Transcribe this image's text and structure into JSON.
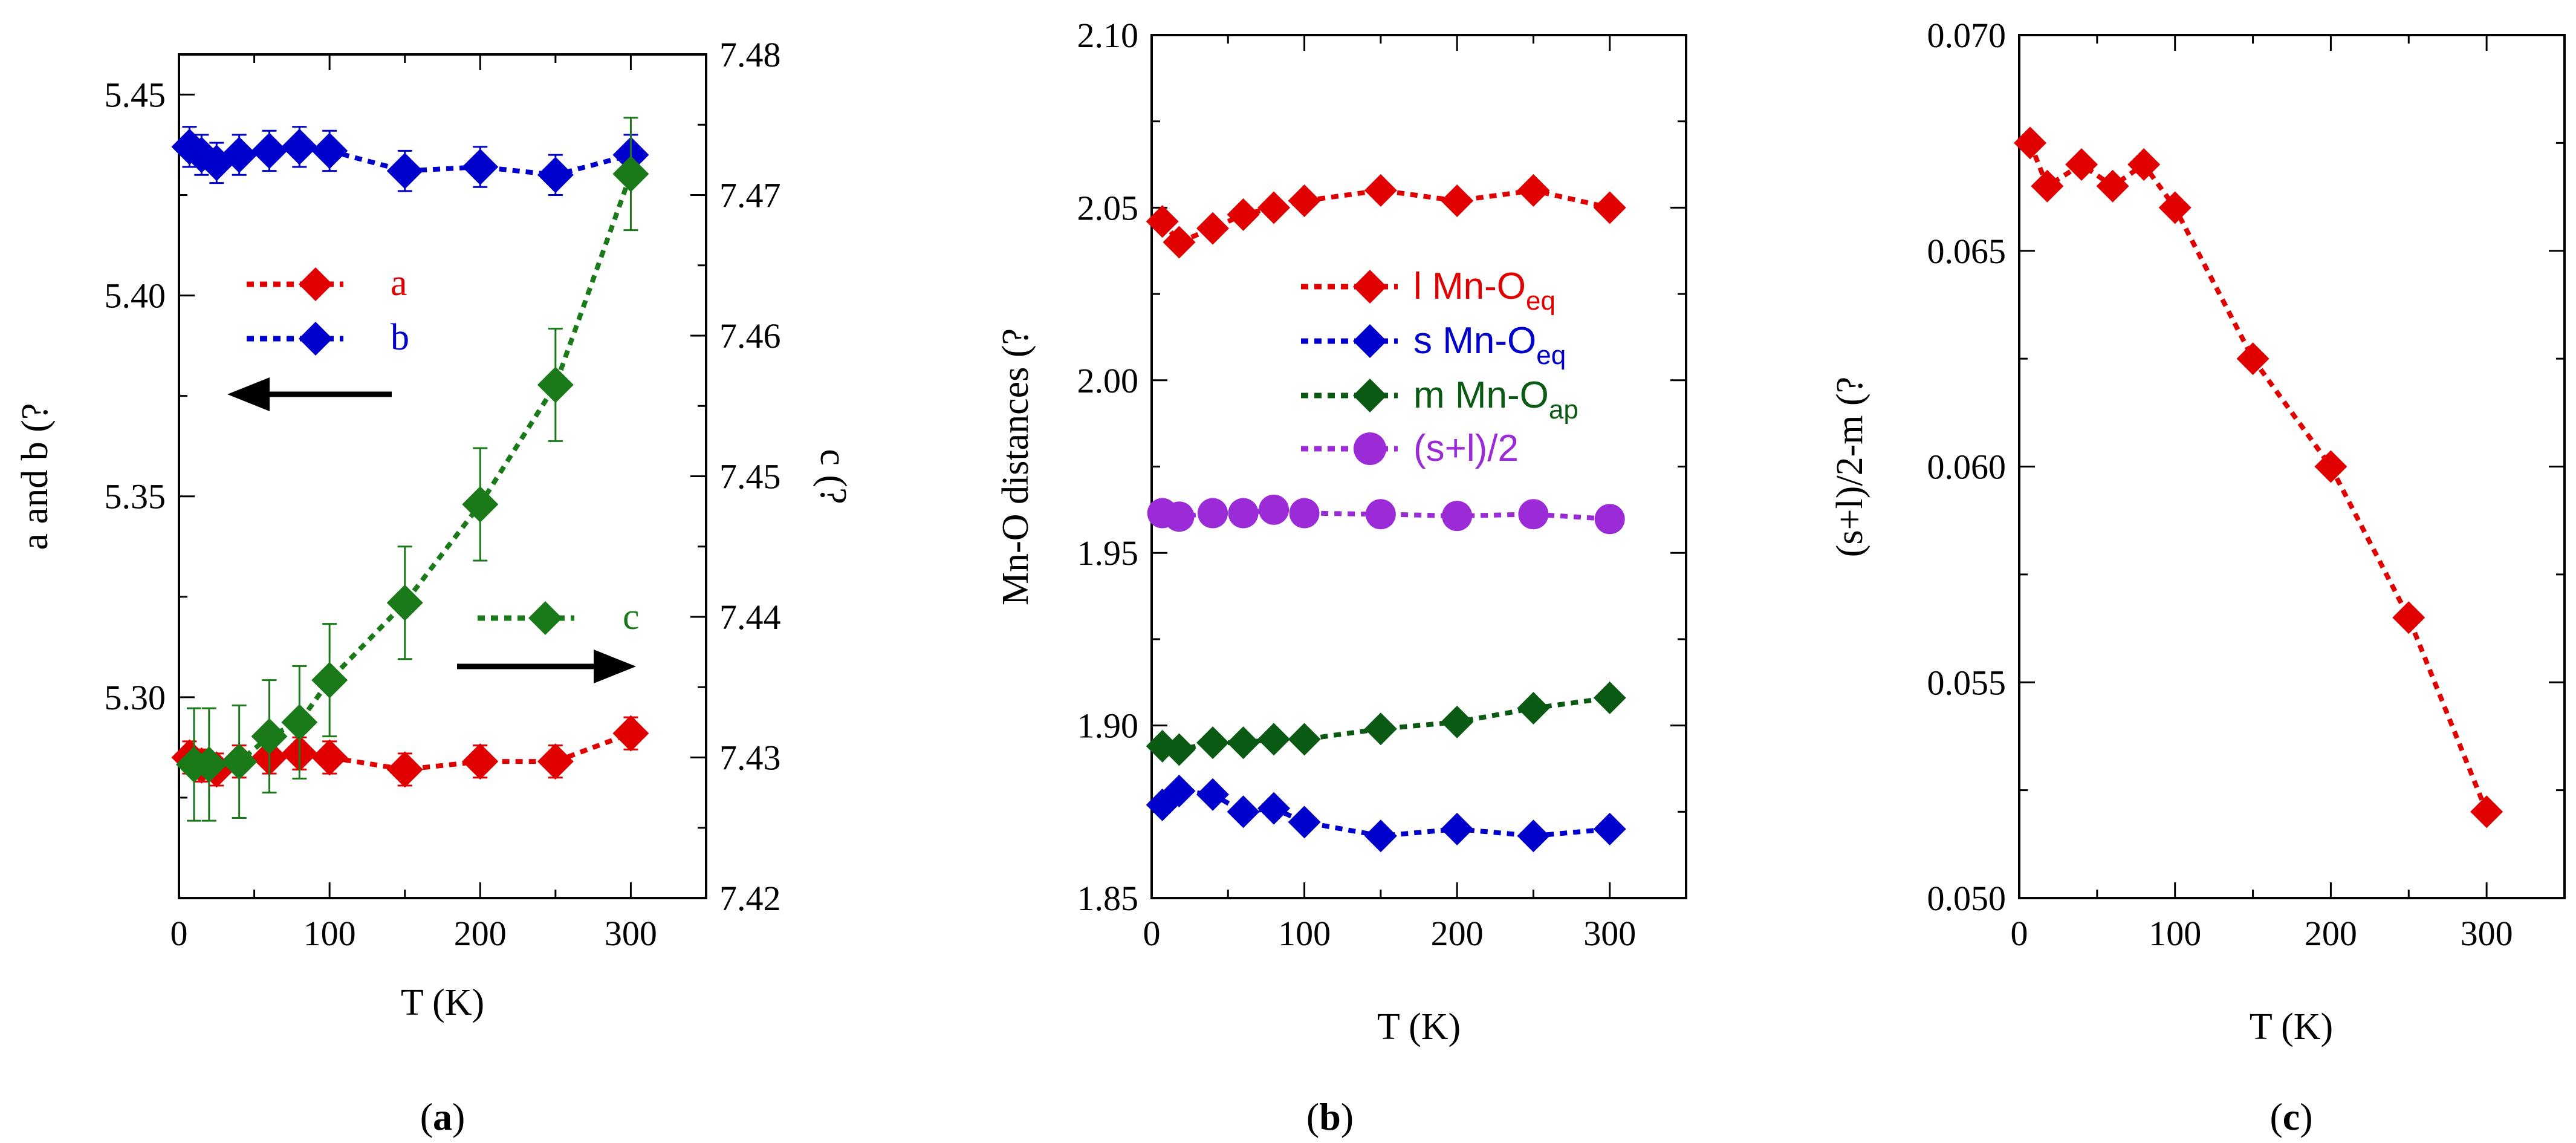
{
  "colors": {
    "red": "#e00000",
    "blue": "#0000cc",
    "green": "#1a7a1a",
    "darkgreen": "#0a5a14",
    "purple": "#9a2bd6",
    "black": "#000000"
  },
  "chart_data": [
    {
      "id": "a",
      "type": "scatter",
      "panel_label_prefix": "(",
      "panel_label": "a",
      "panel_label_suffix": ")",
      "xlabel": "T (K)",
      "ylabel": "a and b (?",
      "y2label": "c (?",
      "xlim": [
        0,
        350
      ],
      "ylim": [
        5.25,
        5.46
      ],
      "y2lim": [
        7.42,
        7.48
      ],
      "xticks": [
        "0",
        "100",
        "200",
        "300"
      ],
      "yticks": [
        "5.30",
        "5.35",
        "5.40",
        "5.45"
      ],
      "y2ticks": [
        "7.42",
        "7.43",
        "7.44",
        "7.45",
        "7.46",
        "7.47",
        "7.48"
      ],
      "grid": false,
      "series": [
        {
          "name": "a",
          "axis": "left",
          "color": "red",
          "marker": "diamond",
          "line": "dotted",
          "x": [
            7,
            15,
            25,
            40,
            60,
            80,
            100,
            150,
            200,
            250,
            300
          ],
          "y": [
            5.285,
            5.283,
            5.282,
            5.284,
            5.285,
            5.286,
            5.285,
            5.282,
            5.284,
            5.284,
            5.291
          ],
          "err": [
            0.004,
            0.004,
            0.004,
            0.004,
            0.004,
            0.004,
            0.004,
            0.004,
            0.004,
            0.004,
            0.004
          ]
        },
        {
          "name": "b",
          "axis": "left",
          "color": "blue",
          "marker": "diamond",
          "line": "dotted",
          "x": [
            7,
            15,
            25,
            40,
            60,
            80,
            100,
            150,
            200,
            250,
            300
          ],
          "y": [
            5.437,
            5.435,
            5.433,
            5.435,
            5.436,
            5.437,
            5.436,
            5.431,
            5.432,
            5.43,
            5.435
          ],
          "err": [
            0.005,
            0.005,
            0.005,
            0.005,
            0.005,
            0.005,
            0.005,
            0.005,
            0.005,
            0.005,
            0.005
          ]
        },
        {
          "name": "c",
          "axis": "right",
          "color": "green",
          "marker": "diamond",
          "line": "dotted",
          "x": [
            10,
            20,
            40,
            60,
            80,
            100,
            150,
            200,
            250,
            300
          ],
          "y": [
            7.4295,
            7.4295,
            7.4297,
            7.4315,
            7.4325,
            7.4355,
            7.441,
            7.448,
            7.4565,
            7.4715
          ],
          "err": [
            0.004,
            0.004,
            0.004,
            0.004,
            0.004,
            0.004,
            0.004,
            0.004,
            0.004,
            0.004
          ]
        }
      ]
    },
    {
      "id": "b",
      "type": "scatter",
      "panel_label_prefix": "(",
      "panel_label": "b",
      "panel_label_suffix": ")",
      "xlabel": "T (K)",
      "ylabel": "Mn-O distances (?",
      "xlim": [
        0,
        350
      ],
      "ylim": [
        1.85,
        2.1
      ],
      "xticks": [
        "0",
        "100",
        "200",
        "300"
      ],
      "yticks": [
        "1.85",
        "1.90",
        "1.95",
        "2.00",
        "2.05",
        "2.10"
      ],
      "grid": false,
      "series": [
        {
          "name": "l Mn-O",
          "sub": "eq",
          "color": "red",
          "marker": "diamond",
          "line": "dotted",
          "x": [
            7,
            18,
            40,
            60,
            80,
            100,
            150,
            200,
            250,
            300
          ],
          "y": [
            2.046,
            2.04,
            2.044,
            2.048,
            2.05,
            2.052,
            2.055,
            2.052,
            2.055,
            2.05
          ]
        },
        {
          "name": "s Mn-O",
          "sub": "eq",
          "color": "blue",
          "marker": "diamond",
          "line": "dotted",
          "x": [
            7,
            18,
            40,
            60,
            80,
            100,
            150,
            200,
            250,
            300
          ],
          "y": [
            1.877,
            1.881,
            1.88,
            1.875,
            1.876,
            1.872,
            1.868,
            1.87,
            1.868,
            1.87
          ]
        },
        {
          "name": "m Mn-O",
          "sub": "ap",
          "color": "darkgreen",
          "marker": "diamond",
          "line": "dotted",
          "x": [
            7,
            18,
            40,
            60,
            80,
            100,
            150,
            200,
            250,
            300
          ],
          "y": [
            1.894,
            1.893,
            1.895,
            1.895,
            1.896,
            1.896,
            1.899,
            1.901,
            1.905,
            1.908
          ]
        },
        {
          "name": "(s+l)/2",
          "sub": "",
          "color": "purple",
          "marker": "circle",
          "line": "dotted",
          "x": [
            7,
            18,
            40,
            60,
            80,
            100,
            150,
            200,
            250,
            300
          ],
          "y": [
            1.9615,
            1.9605,
            1.9615,
            1.9615,
            1.9625,
            1.9615,
            1.9612,
            1.9607,
            1.9612,
            1.9598
          ]
        }
      ]
    },
    {
      "id": "c",
      "type": "scatter",
      "panel_label_prefix": "(",
      "panel_label": "c",
      "panel_label_suffix": ")",
      "xlabel": "T (K)",
      "ylabel": "(s+l)/2-m (?",
      "xlim": [
        0,
        350
      ],
      "ylim": [
        0.05,
        0.07
      ],
      "xticks": [
        "0",
        "100",
        "200",
        "300"
      ],
      "yticks": [
        "0.050",
        "0.055",
        "0.060",
        "0.065",
        "0.070"
      ],
      "grid": false,
      "series": [
        {
          "name": "(s+l)/2-m",
          "color": "red",
          "marker": "diamond",
          "line": "dotted",
          "x": [
            7,
            18,
            40,
            60,
            80,
            100,
            150,
            200,
            250,
            300
          ],
          "y": [
            0.0675,
            0.0665,
            0.067,
            0.0665,
            0.067,
            0.066,
            0.0625,
            0.06,
            0.0565,
            0.052
          ]
        }
      ]
    }
  ]
}
